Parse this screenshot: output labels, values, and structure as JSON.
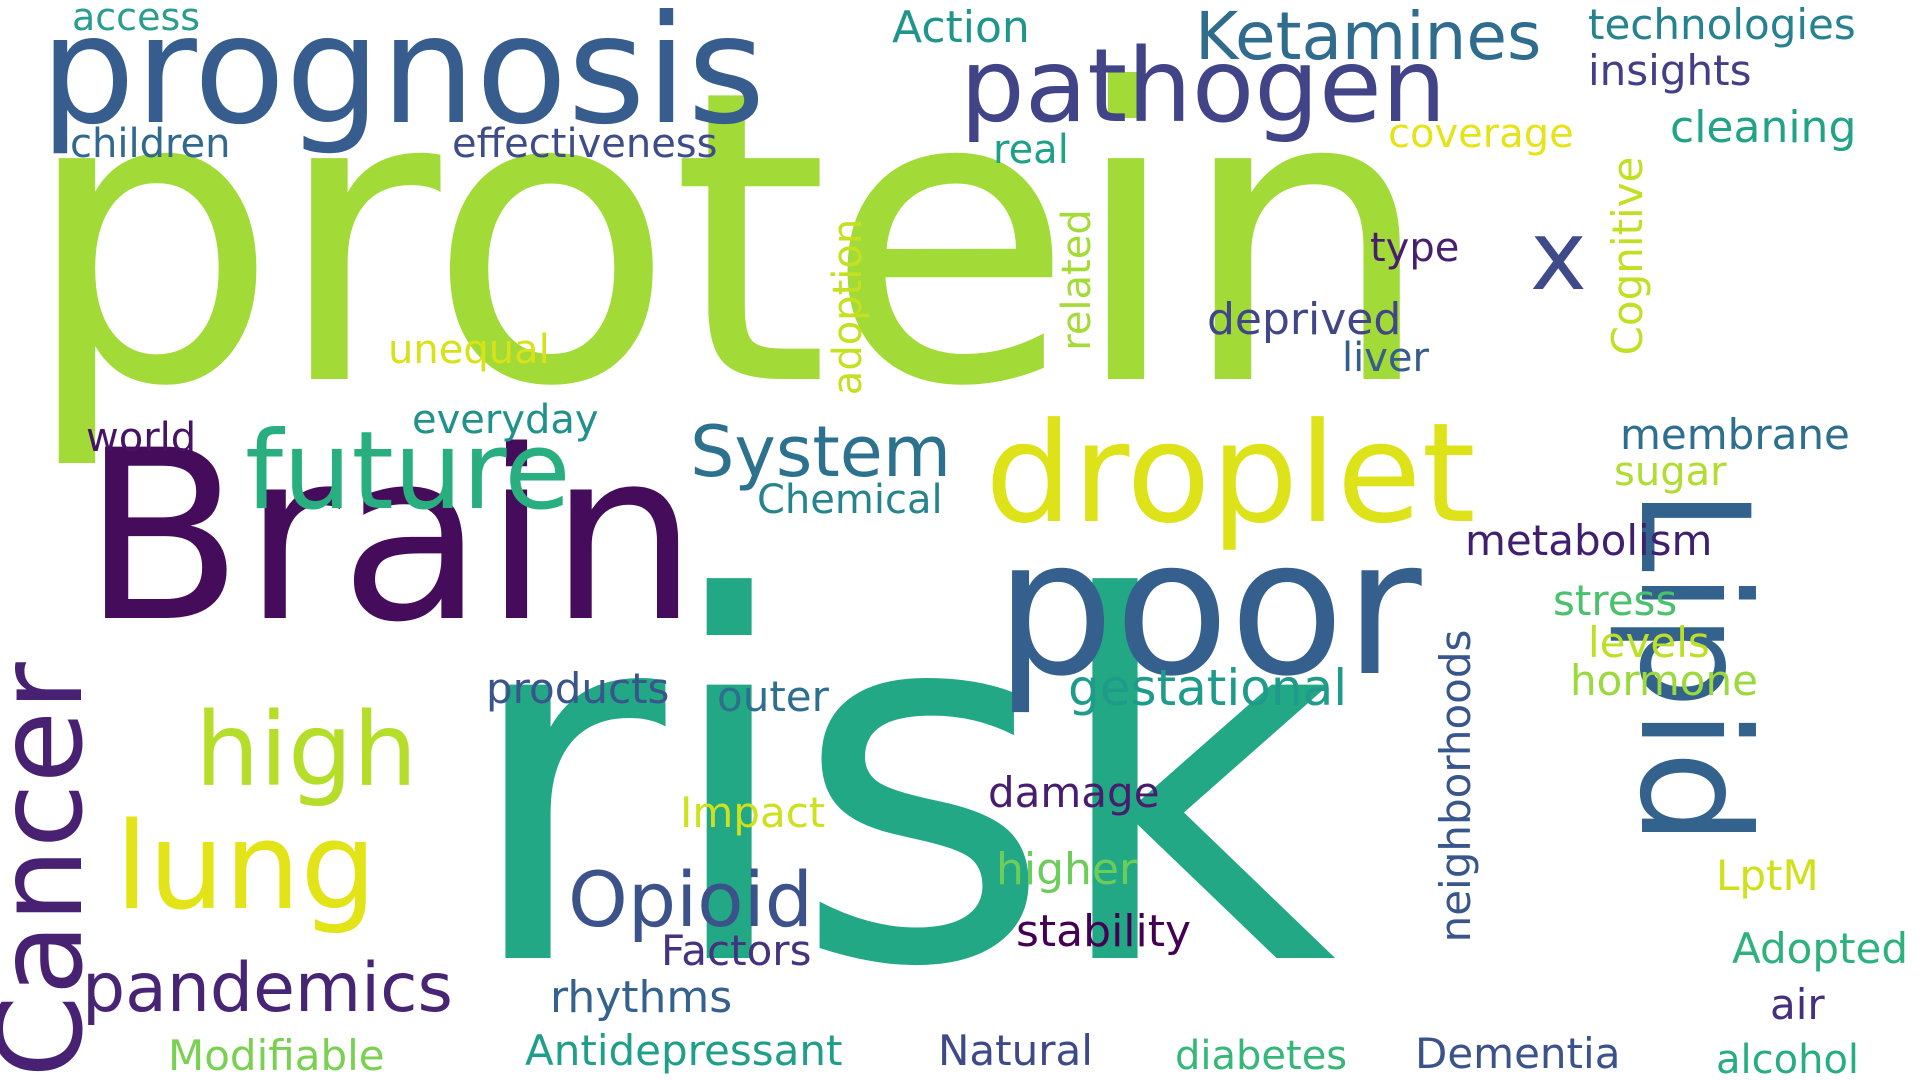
{
  "words": [
    {
      "text": "protein",
      "color": "#a2da37"
    },
    {
      "text": "risk",
      "color": "#22a884"
    },
    {
      "text": "Brain",
      "color": "#440c5a"
    },
    {
      "text": "prognosis",
      "color": "#365d8d"
    },
    {
      "text": "pathogen",
      "color": "#414487"
    },
    {
      "text": "droplet",
      "color": "#dde318"
    },
    {
      "text": "poor",
      "color": "#355f8d"
    },
    {
      "text": "Lipid",
      "color": "#33638d"
    },
    {
      "text": "Cancer",
      "color": "#482173"
    },
    {
      "text": "future",
      "color": "#29af7f"
    },
    {
      "text": "lung",
      "color": "#e2e418"
    },
    {
      "text": "high",
      "color": "#b5de2b"
    },
    {
      "text": "pandemics",
      "color": "#482475"
    },
    {
      "text": "Opioid",
      "color": "#3b528b"
    },
    {
      "text": "System",
      "color": "#2c728e"
    },
    {
      "text": "Ketamines",
      "color": "#2f6c8e"
    },
    {
      "text": "x",
      "color": "#3e4a89"
    },
    {
      "text": "technologies",
      "color": "#26828e"
    },
    {
      "text": "insights",
      "color": "#433e85"
    },
    {
      "text": "cleaning",
      "color": "#20a386"
    },
    {
      "text": "Action",
      "color": "#1f968b"
    },
    {
      "text": "access",
      "color": "#2a9d8f"
    },
    {
      "text": "children",
      "color": "#31688e"
    },
    {
      "text": "effectiveness",
      "color": "#3e4c8a"
    },
    {
      "text": "real",
      "color": "#1fa088"
    },
    {
      "text": "coverage",
      "color": "#e5e419"
    },
    {
      "text": "Cognitive",
      "color": "#c2df23"
    },
    {
      "text": "type",
      "color": "#481f70"
    },
    {
      "text": "deprived",
      "color": "#404688"
    },
    {
      "text": "liver",
      "color": "#355e8d"
    },
    {
      "text": "related",
      "color": "#a5db36"
    },
    {
      "text": "adoption",
      "color": "#c5e021"
    },
    {
      "text": "unequal",
      "color": "#d8e219"
    },
    {
      "text": "everyday",
      "color": "#21918c"
    },
    {
      "text": "world",
      "color": "#471365"
    },
    {
      "text": "Chemical",
      "color": "#25848e"
    },
    {
      "text": "membrane",
      "color": "#2e6e8e"
    },
    {
      "text": "sugar",
      "color": "#b0dd2f"
    },
    {
      "text": "metabolism",
      "color": "#3f1f6f"
    },
    {
      "text": "stress",
      "color": "#4ac16d"
    },
    {
      "text": "levels",
      "color": "#bddf26"
    },
    {
      "text": "hormone",
      "color": "#9bd93c"
    },
    {
      "text": "neighborhoods",
      "color": "#39568c"
    },
    {
      "text": "products",
      "color": "#3a548c"
    },
    {
      "text": "outer",
      "color": "#2d708e"
    },
    {
      "text": "gestational",
      "color": "#1e9b8a"
    },
    {
      "text": "damage",
      "color": "#481d6f"
    },
    {
      "text": "Impact",
      "color": "#cde11d"
    },
    {
      "text": "higher",
      "color": "#6ccd5a"
    },
    {
      "text": "LptM",
      "color": "#d0e11c"
    },
    {
      "text": "stability",
      "color": "#440154"
    },
    {
      "text": "Factors",
      "color": "#46327e"
    },
    {
      "text": "rhythms",
      "color": "#34618d"
    },
    {
      "text": "Adopted",
      "color": "#2db27d"
    },
    {
      "text": "air",
      "color": "#46307e"
    },
    {
      "text": "Modifiable",
      "color": "#7ad151"
    },
    {
      "text": "Antidepressant",
      "color": "#1f9e89"
    },
    {
      "text": "Natural",
      "color": "#3e4989"
    },
    {
      "text": "diabetes",
      "color": "#35b779"
    },
    {
      "text": "Dementia",
      "color": "#3b528b"
    },
    {
      "text": "alcohol",
      "color": "#26ad81"
    }
  ]
}
